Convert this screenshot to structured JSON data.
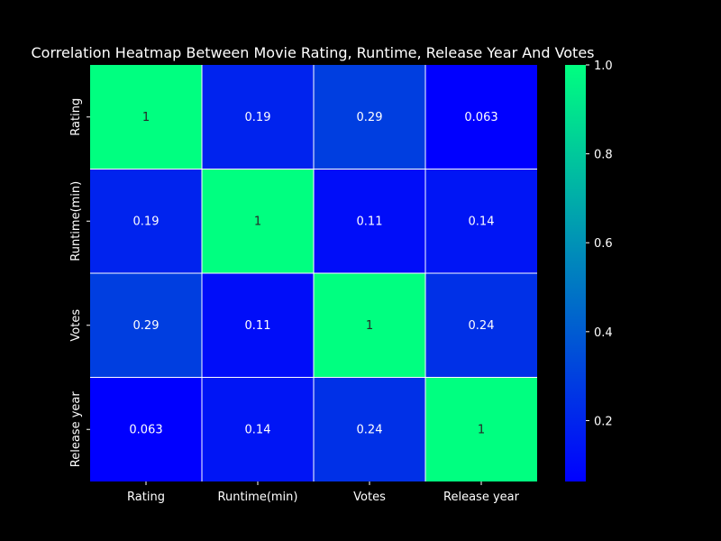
{
  "chart_data": {
    "type": "heatmap",
    "title": "Correlation Heatmap Between Movie Rating, Runtime, Release Year And Votes",
    "xlabel": "",
    "ylabel": "",
    "x_categories": [
      "Rating",
      "Runtime(min)",
      "Votes",
      "Release year"
    ],
    "y_categories": [
      "Rating",
      "Runtime(min)",
      "Votes",
      "Release year"
    ],
    "values": [
      [
        1,
        0.19,
        0.29,
        0.063
      ],
      [
        0.19,
        1,
        0.11,
        0.14
      ],
      [
        0.29,
        0.11,
        1,
        0.24
      ],
      [
        0.063,
        0.14,
        0.24,
        1
      ]
    ],
    "cell_labels": [
      [
        "1",
        "0.19",
        "0.29",
        "0.063"
      ],
      [
        "0.19",
        "1",
        "0.11",
        "0.14"
      ],
      [
        "0.29",
        "0.11",
        "1",
        "0.24"
      ],
      [
        "0.063",
        "0.14",
        "0.24",
        "1"
      ]
    ],
    "colormap": "winter",
    "color_range": [
      0.063,
      1
    ],
    "colormap_low": "#0000ff",
    "colormap_high": "#00ff80",
    "colorbar": {
      "ticks": [
        0.2,
        0.4,
        0.6,
        0.8,
        1.0
      ],
      "tick_labels": [
        "0.2",
        "0.4",
        "0.6",
        "0.8",
        "1.0"
      ]
    },
    "cell_border_color": "#ffffff",
    "background_color": "#000000",
    "text_color": "#ffffff"
  }
}
